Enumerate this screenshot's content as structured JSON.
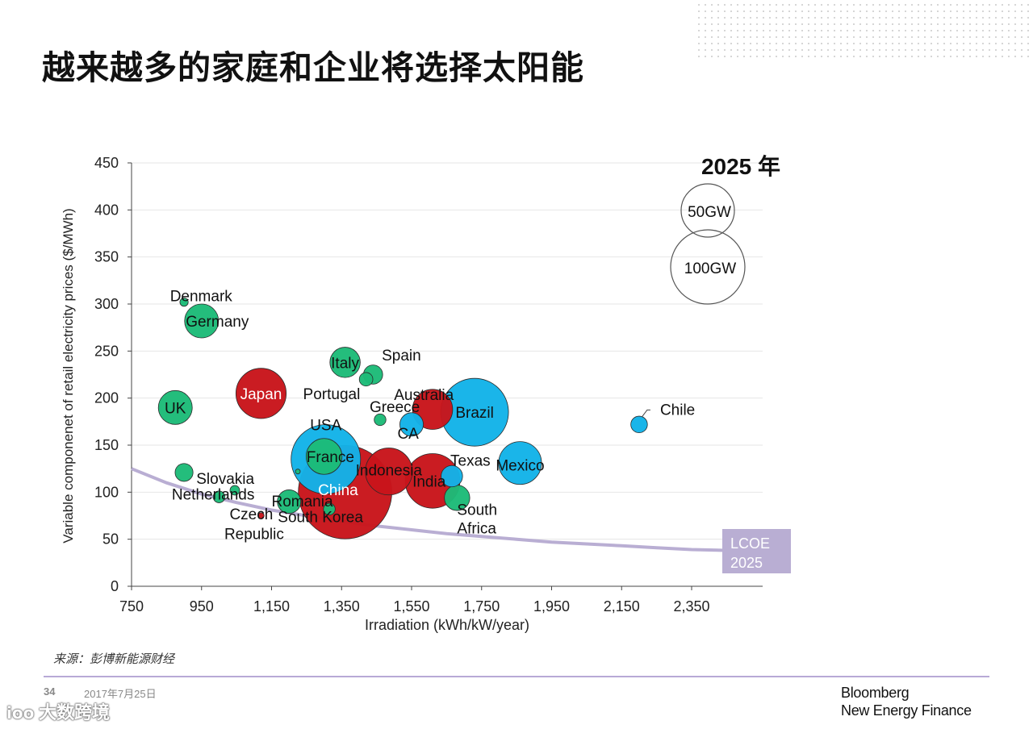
{
  "slide": {
    "title": "越来越多的家庭和企业将选择太阳能",
    "source": "来源：彭博新能源财经",
    "page_number": "34",
    "date": "2017年7月25日",
    "brand_line1": "Bloomberg",
    "brand_line2": "New Energy Finance",
    "watermark_text": "大数跨境",
    "watermark_logo": "ioo"
  },
  "colors": {
    "green": "#1dbb78",
    "red": "#c8151b",
    "blue": "#13b3e8",
    "lcoe": "#b9aed3",
    "grid": "#e6e6e6",
    "footer_line": "#b8a9d6"
  },
  "chart_data": {
    "type": "scatter",
    "title": "2025 年",
    "xlabel": "Irradiation (kWh/kW/year)",
    "ylabel": "Variable componenet of retail electricity prices ($/MWh)",
    "xlim": [
      750,
      2480
    ],
    "ylim": [
      0,
      450
    ],
    "xticks": [
      750,
      950,
      1150,
      1350,
      1550,
      1750,
      1950,
      2150,
      2350
    ],
    "xtick_labels": [
      "750",
      "950",
      "1,150",
      "1,350",
      "1,550",
      "1,750",
      "1,950",
      "2,150",
      "2,350"
    ],
    "yticks": [
      0,
      50,
      100,
      150,
      200,
      250,
      300,
      350,
      400,
      450
    ],
    "ytick_labels": [
      "0",
      "50",
      "100",
      "150",
      "200",
      "250",
      "300",
      "350",
      "400",
      "450"
    ],
    "grid": true,
    "size_legend": [
      {
        "label": "50GW",
        "gw": 50
      },
      {
        "label": "100GW",
        "gw": 100
      }
    ],
    "lcoe_label": [
      "LCOE",
      "2025"
    ],
    "lcoe_curve": [
      [
        750,
        125
      ],
      [
        850,
        110
      ],
      [
        950,
        98
      ],
      [
        1050,
        89
      ],
      [
        1150,
        81
      ],
      [
        1250,
        75
      ],
      [
        1350,
        69
      ],
      [
        1450,
        64
      ],
      [
        1550,
        60
      ],
      [
        1650,
        56
      ],
      [
        1750,
        53
      ],
      [
        1850,
        50
      ],
      [
        1950,
        47
      ],
      [
        2050,
        45
      ],
      [
        2150,
        43
      ],
      [
        2250,
        41
      ],
      [
        2350,
        39
      ],
      [
        2470,
        38
      ]
    ],
    "series": [
      {
        "name": "Denmark",
        "x": 900,
        "y": 302,
        "gw": 1.5,
        "color": "green",
        "label": "Denmark",
        "label_x": 860,
        "label_y": 309
      },
      {
        "name": "Germany",
        "x": 950,
        "y": 282,
        "gw": 25,
        "color": "green",
        "label": "Germany",
        "label_x": 995,
        "label_y": 282,
        "anchor": "middle"
      },
      {
        "name": "UK",
        "x": 875,
        "y": 190,
        "gw": 25,
        "color": "green",
        "label": "UK",
        "label_x": 875,
        "label_y": 190,
        "anchor": "middle"
      },
      {
        "name": "Japan",
        "x": 1120,
        "y": 205,
        "gw": 55,
        "color": "red",
        "label": "Japan",
        "label_x": 1120,
        "label_y": 205,
        "anchor": "middle",
        "label_color": "#ffffff"
      },
      {
        "name": "USA",
        "x": 1305,
        "y": 135,
        "gw": 105,
        "color": "blue",
        "label": "USA",
        "label_x": 1305,
        "label_y": 172,
        "anchor": "middle"
      },
      {
        "name": "Portugal",
        "x": 1225,
        "y": 122,
        "gw": 0.5,
        "color": "green",
        "label": "Portugal",
        "label_x": 1240,
        "label_y": 205
      },
      {
        "name": "Italy",
        "x": 1360,
        "y": 238,
        "gw": 20,
        "color": "green",
        "label": "Italy",
        "label_x": 1360,
        "label_y": 238,
        "anchor": "middle"
      },
      {
        "name": "Spain",
        "x": 1440,
        "y": 225,
        "gw": 8,
        "color": "green",
        "label": "Spain",
        "label_x": 1465,
        "label_y": 246
      },
      {
        "name": "Portugal-bubble",
        "x": 1420,
        "y": 220,
        "gw": 4,
        "color": "green",
        "label": ""
      },
      {
        "name": "Greece",
        "x": 1460,
        "y": 177,
        "gw": 3,
        "color": "green",
        "label": "Greece",
        "label_x": 1430,
        "label_y": 191
      },
      {
        "name": "CA",
        "x": 1550,
        "y": 172,
        "gw": 12,
        "color": "blue",
        "label": "CA",
        "label_x": 1540,
        "label_y": 163,
        "anchor": "middle"
      },
      {
        "name": "Australia",
        "x": 1610,
        "y": 188,
        "gw": 35,
        "color": "red",
        "label": "Australia",
        "label_x": 1585,
        "label_y": 204,
        "anchor": "middle"
      },
      {
        "name": "Brazil",
        "x": 1730,
        "y": 185,
        "gw": 100,
        "color": "blue",
        "label": "Brazil",
        "label_x": 1730,
        "label_y": 185,
        "anchor": "middle"
      },
      {
        "name": "France",
        "x": 1300,
        "y": 138,
        "gw": 28,
        "color": "green",
        "label": "France",
        "label_x": 1318,
        "label_y": 138,
        "anchor": "middle"
      },
      {
        "name": "China",
        "x": 1360,
        "y": 100,
        "gw": 190,
        "color": "red",
        "label": "China",
        "label_x": 1340,
        "label_y": 103,
        "anchor": "middle",
        "label_color": "#ffffff"
      },
      {
        "name": "Indonesia",
        "x": 1485,
        "y": 122,
        "gw": 48,
        "color": "red",
        "label": "Indonesia",
        "label_x": 1485,
        "label_y": 124,
        "anchor": "middle"
      },
      {
        "name": "Texas",
        "x": 1665,
        "y": 117,
        "gw": 10,
        "color": "blue",
        "label": "Texas",
        "label_x": 1718,
        "label_y": 134,
        "anchor": "middle"
      },
      {
        "name": "India",
        "x": 1610,
        "y": 112,
        "gw": 65,
        "color": "red",
        "label": "India",
        "label_x": 1600,
        "label_y": 112,
        "anchor": "middle"
      },
      {
        "name": "Mexico",
        "x": 1860,
        "y": 131,
        "gw": 40,
        "color": "blue",
        "label": "Mexico",
        "label_x": 1860,
        "label_y": 129,
        "anchor": "middle"
      },
      {
        "name": "Slovakia",
        "x": 900,
        "y": 121,
        "gw": 7,
        "color": "green",
        "label": "Slovakia",
        "label_x": 935,
        "label_y": 115
      },
      {
        "name": "Netherlands",
        "x": 1045,
        "y": 102,
        "gw": 2,
        "color": "green",
        "label": "Netherlands",
        "label_x": 865,
        "label_y": 98
      },
      {
        "name": "Czech",
        "x": 1000,
        "y": 95,
        "gw": 3,
        "color": "green",
        "label": "",
        "label_x": 0,
        "label_y": 0
      },
      {
        "name": "Czech Republic",
        "x": 1120,
        "y": 75,
        "gw": 0.8,
        "color": "red",
        "label": "Czech",
        "label_x": 1030,
        "label_y": 77
      },
      {
        "name": "Republic",
        "x": 1120,
        "y": 75,
        "gw": 0,
        "color": "red",
        "label": "Republic",
        "label_x": 1015,
        "label_y": 56
      },
      {
        "name": "Romania",
        "x": 1200,
        "y": 90,
        "gw": 12,
        "color": "green",
        "label": "Romania",
        "label_x": 1150,
        "label_y": 91
      },
      {
        "name": "South Korea",
        "x": 1315,
        "y": 82,
        "gw": 3,
        "color": "green",
        "label": "South Korea",
        "label_x": 1168,
        "label_y": 74
      },
      {
        "name": "South Africa",
        "x": 1680,
        "y": 94,
        "gw": 14,
        "color": "green",
        "label": "South",
        "label_x": 1680,
        "label_y": 82
      },
      {
        "name": "Africa",
        "x": 1680,
        "y": 94,
        "gw": 0,
        "color": "green",
        "label": "Africa",
        "label_x": 1680,
        "label_y": 62
      },
      {
        "name": "Chile",
        "x": 2200,
        "y": 172,
        "gw": 6,
        "color": "blue",
        "label": "Chile",
        "label_x": 2260,
        "label_y": 188
      }
    ]
  }
}
